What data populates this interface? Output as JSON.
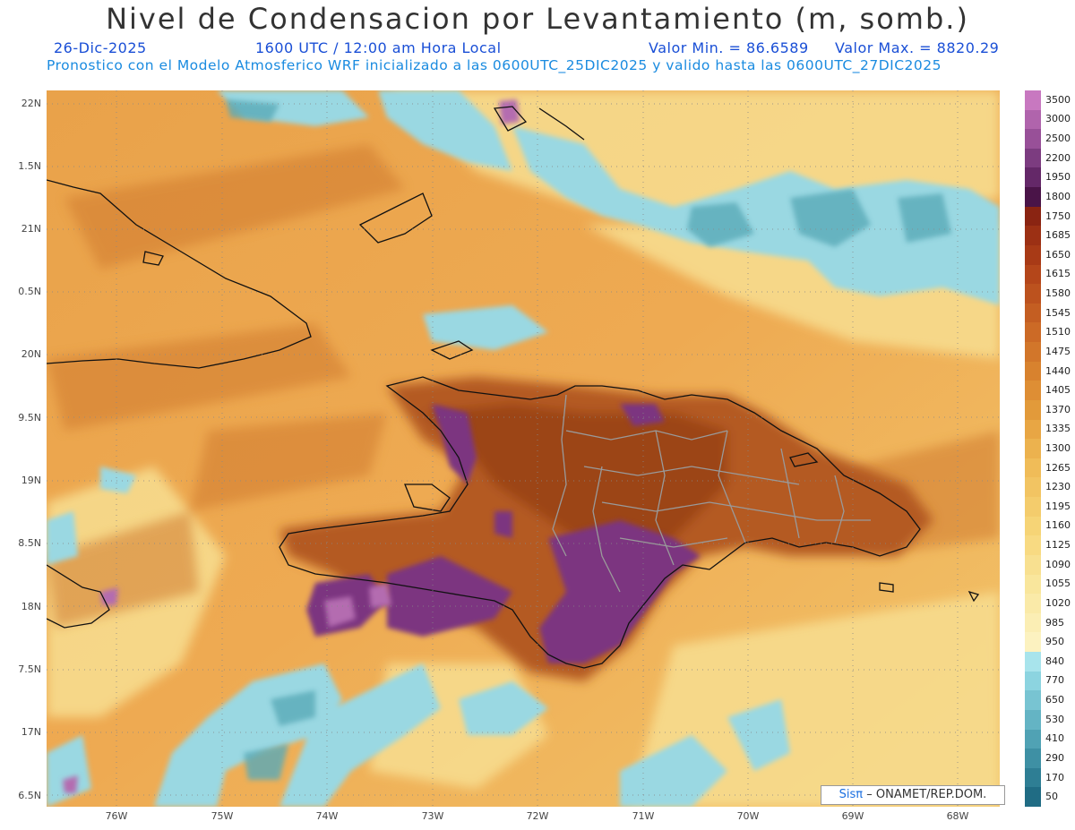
{
  "header": {
    "title": "Nivel de Condensacion por Levantamiento (m, somb.)",
    "date": "26-Dic-2025",
    "time": "1600 UTC / 12:00 am Hora Local",
    "min_label": "Valor Min. = 86.6589",
    "max_label": "Valor Max. = 8820.29",
    "model_line": "Pronostico con el Modelo Atmosferico WRF inicializado a las 0600UTC_25DIC2025 y valido hasta las  0600UTC_27DIC2025"
  },
  "axes": {
    "lat_labels": [
      "22N",
      "1.5N",
      "21N",
      "0.5N",
      "20N",
      "9.5N",
      "19N",
      "8.5N",
      "18N",
      "7.5N",
      "17N",
      "6.5N"
    ],
    "lon_labels": [
      "76W",
      "75W",
      "74W",
      "73W",
      "72W",
      "71W",
      "70W",
      "69W",
      "68W"
    ]
  },
  "legend": {
    "values": [
      "3500",
      "3000",
      "2500",
      "2200",
      "1950",
      "1800",
      "1750",
      "1685",
      "1650",
      "1615",
      "1580",
      "1545",
      "1510",
      "1475",
      "1440",
      "1405",
      "1370",
      "1335",
      "1300",
      "1265",
      "1230",
      "1195",
      "1160",
      "1125",
      "1090",
      "1055",
      "1020",
      "985",
      "950",
      "840",
      "770",
      "650",
      "530",
      "410",
      "290",
      "170",
      "50"
    ],
    "colors": [
      "#c878c0",
      "#b064ac",
      "#985098",
      "#7c3c80",
      "#642868",
      "#4a1448",
      "#8a2412",
      "#9c3014",
      "#a83a16",
      "#b4461a",
      "#bc521e",
      "#c45e22",
      "#cc6a26",
      "#d2762a",
      "#d8822e",
      "#de8e34",
      "#e29a3a",
      "#e8a644",
      "#ecb24e",
      "#f0bc58",
      "#f2c462",
      "#f4cc6c",
      "#f6d476",
      "#f8da82",
      "#f8e090",
      "#f9e69c",
      "#faeaa8",
      "#fbeeb4",
      "#fcf2c0",
      "#a8e4ec",
      "#8cd4e0",
      "#78c4d2",
      "#64b4c4",
      "#50a2b4",
      "#3e90a4",
      "#2e7e94",
      "#206c84"
    ]
  },
  "credit": {
    "sis": "Sisπ",
    "org": "– ONAMET/REP.DOM."
  }
}
